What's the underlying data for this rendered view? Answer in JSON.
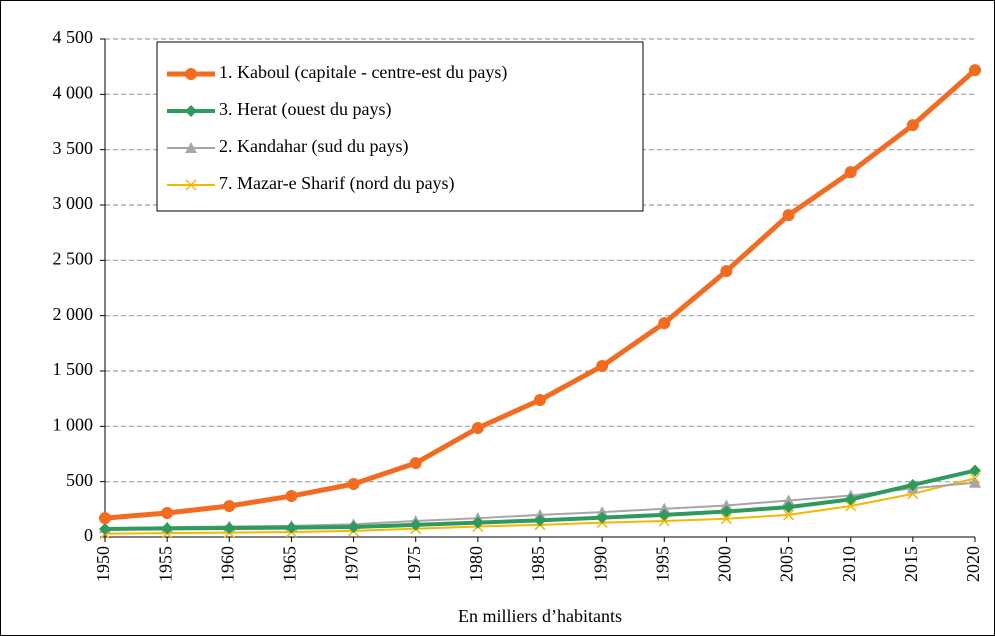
{
  "chart_data": {
    "type": "line",
    "xlabel": "En milliers d’habitants",
    "x": [
      1950,
      1955,
      1960,
      1965,
      1970,
      1975,
      1980,
      1985,
      1990,
      1995,
      2000,
      2005,
      2010,
      2015,
      2020
    ],
    "xlim": [
      1950,
      2020
    ],
    "xticks": [
      1950,
      1955,
      1960,
      1965,
      1970,
      1975,
      1980,
      1985,
      1990,
      1995,
      2000,
      2005,
      2010,
      2015,
      2020
    ],
    "ylim": [
      0,
      4500
    ],
    "yticks": [
      0,
      500,
      {
        "value": 1000,
        "label": "1 000"
      },
      {
        "value": 1500,
        "label": "1 500"
      },
      {
        "value": 2000,
        "label": "2 000"
      },
      {
        "value": 2500,
        "label": "2 500"
      },
      {
        "value": 3000,
        "label": "3 000"
      },
      {
        "value": 3500,
        "label": "3 500"
      },
      {
        "value": 4000,
        "label": "4 000"
      },
      {
        "value": 4500,
        "label": "4 500"
      }
    ],
    "grid": true,
    "legend": "upper left",
    "series": [
      {
        "name": "1. Kaboul (capitale - centre-est du pays)",
        "color": "#f26b21",
        "marker": "circle",
        "values": [
          171,
          217,
          280,
          370,
          479,
          668,
          985,
          1238,
          1545,
          1933,
          2403,
          2909,
          3297,
          3722,
          4219
        ]
      },
      {
        "name": "3. Herat (ouest du pays)",
        "color": "#2e9a5e",
        "marker": "diamond",
        "values": [
          72,
          78,
          81,
          85,
          90,
          110,
          130,
          150,
          175,
          200,
          230,
          270,
          340,
          470,
          600
        ]
      },
      {
        "name": "2. Kandahar (sud du pays)",
        "color": "#a6a6a6",
        "marker": "triangle",
        "values": [
          80,
          88,
          95,
          100,
          115,
          145,
          170,
          200,
          225,
          255,
          285,
          330,
          375,
          440,
          490
        ]
      },
      {
        "name": "7. Mazar-e Sharif (nord du pays)",
        "color": "#f5b800",
        "marker": "x",
        "values": [
          30,
          35,
          40,
          45,
          55,
          75,
          95,
          110,
          130,
          145,
          165,
          200,
          280,
          390,
          530
        ]
      }
    ]
  }
}
